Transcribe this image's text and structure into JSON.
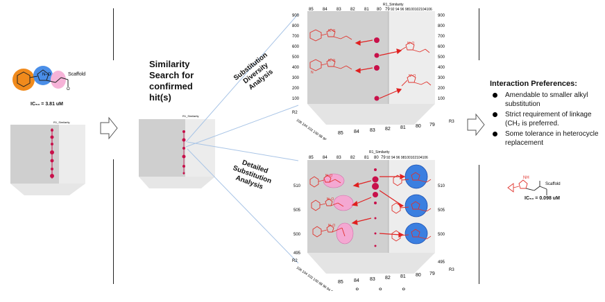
{
  "left": {
    "scaffold_label": "Scaffold",
    "ic50": "IC₅₀ = 3.81 uM",
    "plot_title": "R1_Similarity"
  },
  "middle": {
    "title_lines": [
      "Similarity",
      "Search for",
      "confirmed",
      "hit(s)"
    ],
    "plot_title": "R1_Similarity"
  },
  "labels": {
    "diversity": [
      "Substitution",
      "Diversity",
      "Analysis"
    ],
    "detailed": [
      "Detailed",
      "Substitution",
      "Analysis"
    ]
  },
  "top_plot": {
    "title": "R1_Similarity",
    "top_ticks": [
      "85",
      "84",
      "83",
      "82",
      "81",
      "80",
      "79"
    ],
    "right_top_ticks": "92 94 96 98100102104106",
    "y_ticks": [
      "900",
      "800",
      "700",
      "600",
      "500",
      "400",
      "300",
      "200",
      "100"
    ],
    "axis_r2": "R2",
    "axis_r3": "R3",
    "bottom_ticks": [
      "85",
      "84",
      "83",
      "82",
      "81",
      "80",
      "79"
    ],
    "left_bottom_ticks": "106 104 102 100 98 96 94 92"
  },
  "bottom_plot": {
    "title": "R1_Similarity",
    "top_ticks": [
      "85",
      "84",
      "83",
      "82",
      "81",
      "80",
      "79"
    ],
    "right_top_ticks": "92 94 96 98100102104106",
    "y_ticks": [
      "510",
      "505",
      "500",
      "495"
    ],
    "axis_r2": "R2",
    "axis_r3": "R3",
    "bottom_ticks": [
      "85",
      "84",
      "83",
      "82",
      "81",
      "80",
      "79"
    ],
    "left_bottom_ticks": "106 104 102 100 98 96 94 92"
  },
  "prefs": {
    "title": "Interaction Preferences:",
    "items": [
      "Amendable to smaller alkyl substitution",
      "Strict requirement of linkage (CH₂ is preferred.",
      "Some tolerance in heterocycle replacement"
    ]
  },
  "result": {
    "scaffold_label": "Scaffold",
    "nh_label": "NH",
    "ic50": "IC₅₀ = 0.098 uM"
  },
  "ellipsis": "° ° °",
  "colors": {
    "marker": "#c8104a",
    "arrow": "#e02020",
    "molecule": "#e0302a",
    "panel_grey": "#d0d0d0",
    "panel_light": "#efefef",
    "highlight_pink": "#f4a8d2",
    "highlight_blue": "#3b7fe0",
    "ring_orange": "#f08a1c",
    "ring_blue": "#4a8ee8",
    "ring_pink": "#f6b3d8"
  }
}
